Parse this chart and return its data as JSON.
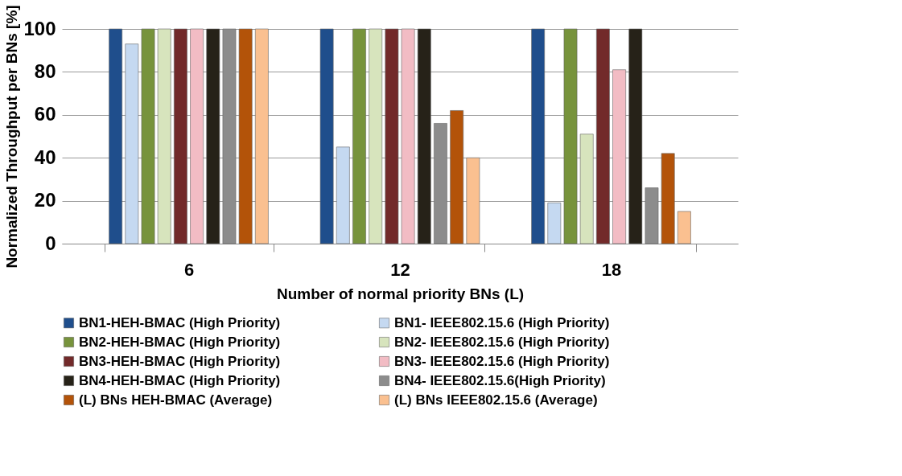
{
  "chart_data": {
    "type": "bar",
    "xlabel": "Number of normal priority BNs (L)",
    "ylabel": "Normalized Throughput per BNs [%]",
    "categories": [
      "6",
      "12",
      "18"
    ],
    "series": [
      {
        "name": "BN1-HEH-BMAC (High Priority)",
        "color": "#1f4e8c",
        "values": [
          100,
          100,
          100
        ]
      },
      {
        "name": "BN1- IEEE802.15.6 (High Priority)",
        "color": "#c5d9f1",
        "values": [
          93,
          45,
          19
        ]
      },
      {
        "name": "BN2-HEH-BMAC (High Priority)",
        "color": "#77933c",
        "values": [
          100,
          100,
          100
        ]
      },
      {
        "name": "BN2- IEEE802.15.6 (High Priority)",
        "color": "#d7e4bd",
        "values": [
          100,
          100,
          51
        ]
      },
      {
        "name": "BN3-HEH-BMAC (High Priority)",
        "color": "#722a2a",
        "values": [
          100,
          100,
          100
        ]
      },
      {
        "name": "BN3- IEEE802.15.6 (High Priority)",
        "color": "#f2bcc4",
        "values": [
          100,
          100,
          81
        ]
      },
      {
        "name": "BN4-HEH-BMAC (High Priority)",
        "color": "#262218",
        "values": [
          100,
          100,
          100
        ]
      },
      {
        "name": "BN4- IEEE802.15.6(High Priority)",
        "color": "#8c8c8c",
        "values": [
          100,
          56,
          26
        ]
      },
      {
        "name": "(L) BNs HEH-BMAC (Average)",
        "color": "#b35309",
        "values": [
          100,
          62,
          42
        ]
      },
      {
        "name": "(L) BNs IEEE802.15.6 (Average)",
        "color": "#fac090",
        "values": [
          100,
          40,
          15
        ]
      }
    ],
    "ylim": [
      0,
      100
    ],
    "yticks": [
      0,
      20,
      40,
      60,
      80,
      100
    ],
    "grid": "y",
    "legend": "bottom"
  }
}
